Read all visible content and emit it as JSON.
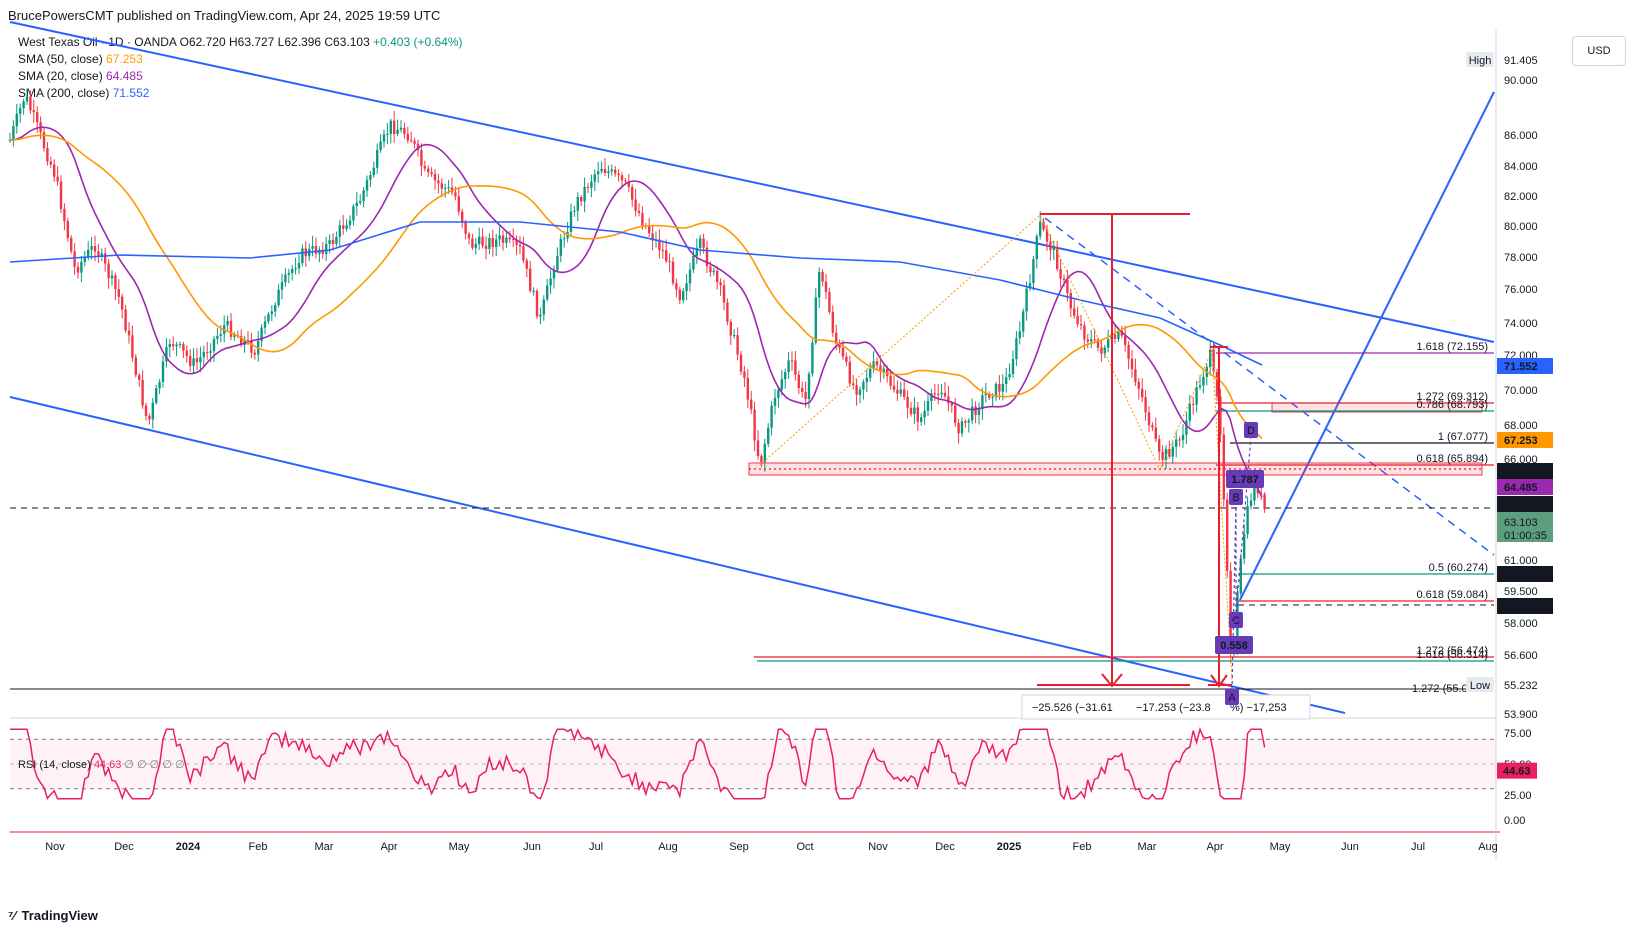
{
  "header": {
    "publisher": "BrucePowersCMT published on TradingView.com, Apr 24, 2025 19:59 UTC"
  },
  "legend": {
    "symbol": "West Texas Oil · 1D · OANDA",
    "ohlc": "O62.720 H63.727 L62.396 C63.103",
    "change": "+0.403 (+0.64%)",
    "sma50_label": "SMA (50, close)",
    "sma50_value": "67.253",
    "sma20_label": "SMA (20, close)",
    "sma20_value": "64.485",
    "sma200_label": "SMA (200, close)",
    "sma200_value": "71.552",
    "rsi_label": "RSI (14, close)",
    "rsi_value": "44.63",
    "rsi_extra": "∅ ∅ ∅ ∅ ∅"
  },
  "currency_button": "USD",
  "footer": {
    "brand": "TradingView"
  },
  "colors": {
    "up": "#089981",
    "down": "#f23645",
    "sma50": "#ff9800",
    "sma20": "#9c27b0",
    "sma200": "#2962ff",
    "channel": "#2962ff",
    "measure": "#e91e2f",
    "rsi": "#e91e63"
  },
  "chart_data": {
    "type": "candlestick",
    "title": "West Texas Oil · 1D · OANDA",
    "ylim": [
      53.9,
      92.2
    ],
    "x_labels": [
      "Nov",
      "Dec",
      "2024",
      "Feb",
      "Mar",
      "Apr",
      "May",
      "Jun",
      "Jul",
      "Aug",
      "Sep",
      "Oct",
      "Nov",
      "Dec",
      "2025",
      "Feb",
      "Mar",
      "Apr",
      "May",
      "Jun",
      "Jul",
      "Aug"
    ],
    "y_ticks": [
      "90.000",
      "86.000",
      "84.000",
      "82.000",
      "80.000",
      "78.000",
      "76.000",
      "74.000",
      "72.000",
      "70.000",
      "68.000",
      "66.000",
      "63.668",
      "61.000",
      "59.500",
      "58.000",
      "56.600",
      "53.900"
    ],
    "price_tags": [
      {
        "label": "High",
        "value": "91.405",
        "kind": "plain"
      },
      {
        "label": "",
        "value": "71.552",
        "kind": "sma200"
      },
      {
        "label": "",
        "value": "67.253",
        "kind": "sma50"
      },
      {
        "label": "",
        "value": "65.650",
        "kind": "black"
      },
      {
        "label": "",
        "value": "64.485",
        "kind": "sma20"
      },
      {
        "label": "",
        "value": "63.668",
        "kind": "black"
      },
      {
        "label": "",
        "value": "63.103",
        "kind": "last"
      },
      {
        "label": "",
        "value": "60.395",
        "kind": "black"
      },
      {
        "label": "",
        "value": "58.860",
        "kind": "black"
      },
      {
        "label": "Low",
        "value": "55.232",
        "kind": "plain"
      }
    ],
    "countdown": "01:00:35",
    "fib_levels": [
      {
        "label": "1.618 (72.155)",
        "value": 72.155
      },
      {
        "label": "1.272 (69.312)",
        "value": 69.312
      },
      {
        "label": "0.786 (68.793)",
        "value": 68.793
      },
      {
        "label": "1 (67.077)",
        "value": 67.077
      },
      {
        "label": "0.618 (65.894)",
        "value": 65.894
      },
      {
        "label": "0.5 (60.274)",
        "value": 60.274
      },
      {
        "label": "0.618 (59.084)",
        "value": 59.084
      },
      {
        "label": "1.272 (56.474)",
        "value": 56.474
      },
      {
        "label": "1.618 (56.314)",
        "value": 56.314
      },
      {
        "label": "1.272 (55.0",
        "value": 55.0
      }
    ],
    "pattern_points": [
      "A",
      "B",
      "C",
      "D"
    ],
    "pattern_labels": [
      "1.787",
      "0.558"
    ],
    "measure_labels": [
      "−25.526 (−31.61",
      "−17.253 (−23.8",
      "%) −17,253"
    ],
    "sma_series": [
      {
        "name": "SMA (50, close)",
        "last": 67.253
      },
      {
        "name": "SMA (20, close)",
        "last": 64.485
      },
      {
        "name": "SMA (200, close)",
        "last": 71.552
      }
    ],
    "rsi": {
      "label": "RSI (14, close)",
      "last": 44.63,
      "y_ticks": [
        "75.00",
        "50.00",
        "25.00",
        "0.00"
      ],
      "bands": [
        30,
        70
      ]
    },
    "key_closes": [
      {
        "x": "Oct 2023",
        "y": 87.5
      },
      {
        "x": "Dec 2023",
        "y": 69.4
      },
      {
        "x": "Apr 2024",
        "y": 86.5
      },
      {
        "x": "Jun 2024",
        "y": 73.3
      },
      {
        "x": "Jul 2024",
        "y": 84.4
      },
      {
        "x": "Sep 2024",
        "y": 65.7
      },
      {
        "x": "Oct 2024",
        "y": 77.5
      },
      {
        "x": "Dec 2024",
        "y": 68.0
      },
      {
        "x": "Jan 2025",
        "y": 80.4
      },
      {
        "x": "Mar 2025",
        "y": 65.8
      },
      {
        "x": "Apr 2025",
        "y": 71.6
      },
      {
        "x": "Apr 9 2025",
        "y": 55.3
      },
      {
        "x": "Apr 24 2025",
        "y": 63.103
      }
    ]
  }
}
